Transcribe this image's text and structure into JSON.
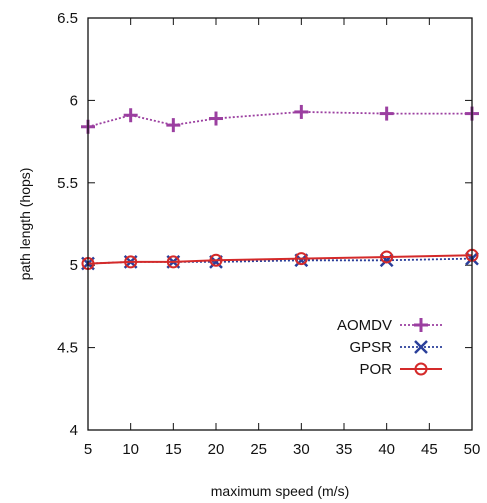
{
  "chart_data": {
    "type": "line",
    "xlabel": "maximum speed (m/s)",
    "ylabel": "path length (hops)",
    "xlim": [
      5,
      50
    ],
    "ylim": [
      4,
      6.5
    ],
    "xticks": [
      "5",
      "10",
      "15",
      "20",
      "25",
      "30",
      "35",
      "40",
      "45",
      "50"
    ],
    "yticks": [
      "4",
      "4.5",
      "5",
      "5.5",
      "6",
      "6.5"
    ],
    "grid": false,
    "legend_position": "bottom-right",
    "series": [
      {
        "name": "AOMDV",
        "color": "#9b3fa0",
        "line": "dotted",
        "marker": "plus",
        "x": [
          5,
          10,
          15,
          20,
          30,
          40,
          50
        ],
        "values": [
          5.84,
          5.91,
          5.85,
          5.89,
          5.93,
          5.92,
          5.92
        ]
      },
      {
        "name": "GPSR",
        "color": "#2a3f9a",
        "line": "dotted",
        "marker": "x",
        "x": [
          5,
          10,
          15,
          20,
          30,
          40,
          50
        ],
        "values": [
          5.01,
          5.02,
          5.02,
          5.02,
          5.03,
          5.03,
          5.04
        ]
      },
      {
        "name": "POR",
        "color": "#d42a2a",
        "line": "solid",
        "marker": "circle",
        "x": [
          5,
          10,
          15,
          20,
          30,
          40,
          50
        ],
        "values": [
          5.01,
          5.02,
          5.02,
          5.03,
          5.04,
          5.05,
          5.06
        ]
      }
    ]
  }
}
